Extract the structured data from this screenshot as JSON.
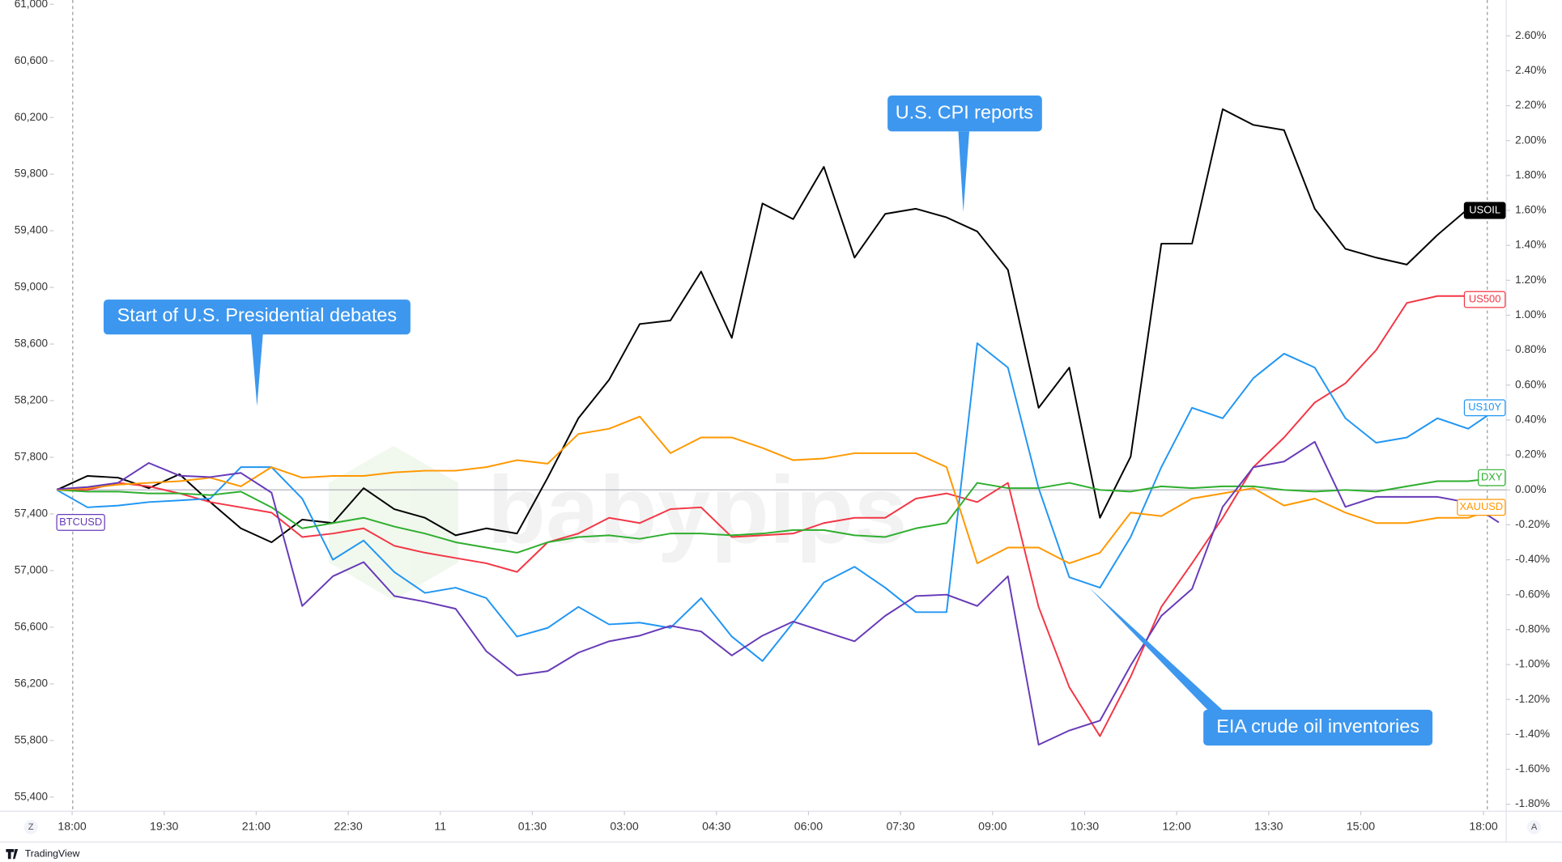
{
  "chart_data": {
    "type": "line",
    "x": [
      0,
      2,
      4,
      6,
      8,
      10,
      12,
      14,
      16,
      18,
      20,
      22,
      24,
      26,
      28,
      30,
      32,
      34,
      36,
      38,
      40,
      42,
      44,
      46,
      48,
      50,
      52,
      54,
      56,
      58,
      60,
      62,
      64,
      66,
      68,
      70,
      72,
      74,
      76,
      78,
      80,
      82,
      84,
      86,
      88,
      90,
      92,
      94
    ],
    "xlim": [
      0,
      94
    ],
    "xticks": [
      {
        "value": 1,
        "label": "18:00"
      },
      {
        "value": 7,
        "label": "19:30"
      },
      {
        "value": 13,
        "label": "21:00"
      },
      {
        "value": 19,
        "label": "22:30"
      },
      {
        "value": 25,
        "label": "11"
      },
      {
        "value": 31,
        "label": "01:30"
      },
      {
        "value": 37,
        "label": "03:00"
      },
      {
        "value": 43,
        "label": "04:30"
      },
      {
        "value": 49,
        "label": "06:00"
      },
      {
        "value": 55,
        "label": "07:30"
      },
      {
        "value": 61,
        "label": "09:00"
      },
      {
        "value": 67,
        "label": "10:30"
      },
      {
        "value": 73,
        "label": "12:00"
      },
      {
        "value": 79,
        "label": "13:30"
      },
      {
        "value": 85,
        "label": "15:00"
      },
      {
        "value": 93,
        "label": "18:00"
      }
    ],
    "ylim": [
      55300,
      61030
    ],
    "yticks": [
      {
        "value": 55400,
        "label": "55,400"
      },
      {
        "value": 55800,
        "label": "55,800"
      },
      {
        "value": 56200,
        "label": "56,200"
      },
      {
        "value": 56600,
        "label": "56,600"
      },
      {
        "value": 57000,
        "label": "57,000"
      },
      {
        "value": 57400,
        "label": "57,400"
      },
      {
        "value": 57800,
        "label": "57,800"
      },
      {
        "value": 58200,
        "label": "58,200"
      },
      {
        "value": 58600,
        "label": "58,600"
      },
      {
        "value": 59000,
        "label": "59,000"
      },
      {
        "value": 59400,
        "label": "59,400"
      },
      {
        "value": 59800,
        "label": "59,800"
      },
      {
        "value": 60200,
        "label": "60,200"
      },
      {
        "value": 60600,
        "label": "60,600"
      },
      {
        "value": 61000,
        "label": "61,000"
      }
    ],
    "y2lim": [
      -1.84,
      2.805
    ],
    "y2ticks": [
      {
        "value": -1.8,
        "label": "-1.80%"
      },
      {
        "value": -1.6,
        "label": "-1.60%"
      },
      {
        "value": -1.4,
        "label": "-1.40%"
      },
      {
        "value": -1.2,
        "label": "-1.20%"
      },
      {
        "value": -1,
        "label": "-1.00%"
      },
      {
        "value": -0.8,
        "label": "-0.80%"
      },
      {
        "value": -0.6,
        "label": "-0.60%"
      },
      {
        "value": -0.4,
        "label": "-0.40%"
      },
      {
        "value": -0.2,
        "label": "-0.20%"
      },
      {
        "value": 0,
        "label": "0.00%"
      },
      {
        "value": 0.2,
        "label": "0.20%"
      },
      {
        "value": 0.4,
        "label": "0.40%"
      },
      {
        "value": 0.6,
        "label": "0.60%"
      },
      {
        "value": 0.8,
        "label": "0.80%"
      },
      {
        "value": 1,
        "label": "1.00%"
      },
      {
        "value": 1.2,
        "label": "1.20%"
      },
      {
        "value": 1.4,
        "label": "1.40%"
      },
      {
        "value": 1.6,
        "label": "1.60%"
      },
      {
        "value": 1.8,
        "label": "1.80%"
      },
      {
        "value": 2,
        "label": "2.00%"
      },
      {
        "value": 2.2,
        "label": "2.20%"
      },
      {
        "value": 2.4,
        "label": "2.40%"
      },
      {
        "value": 2.6,
        "label": "2.60%"
      }
    ],
    "grid": false,
    "series": [
      {
        "name": "USOIL",
        "color": "#000000",
        "axis": "y2",
        "values": [
          0,
          0.08,
          0.07,
          0.01,
          0.09,
          -0.07,
          -0.22,
          -0.3,
          -0.17,
          -0.19,
          0.01,
          -0.11,
          -0.16,
          -0.26,
          -0.22,
          -0.25,
          0.07,
          0.41,
          0.63,
          0.95,
          0.97,
          1.25,
          0.87,
          1.64,
          1.55,
          1.85,
          1.33,
          1.58,
          1.61,
          1.56,
          1.48,
          1.26,
          0.47,
          0.7,
          -0.16,
          0.19,
          1.41,
          1.41,
          2.18,
          2.09,
          2.06,
          1.61,
          1.38,
          1.33,
          1.29,
          1.46,
          1.61,
          1.6
        ]
      },
      {
        "name": "US500",
        "color": "#f23645",
        "axis": "y2",
        "values": [
          0,
          0,
          0.04,
          0.02,
          -0.02,
          -0.07,
          -0.1,
          -0.13,
          -0.27,
          -0.25,
          -0.22,
          -0.32,
          -0.36,
          -0.39,
          -0.42,
          -0.47,
          -0.3,
          -0.25,
          -0.16,
          -0.19,
          -0.11,
          -0.1,
          -0.27,
          -0.26,
          -0.25,
          -0.19,
          -0.16,
          -0.16,
          -0.05,
          -0.02,
          -0.07,
          0.04,
          -0.67,
          -1.13,
          -1.41,
          -1.07,
          -0.67,
          -0.42,
          -0.16,
          0.13,
          0.3,
          0.5,
          0.61,
          0.8,
          1.07,
          1.11,
          1.11,
          1.09
        ]
      },
      {
        "name": "US10Y",
        "color": "#2196f3",
        "axis": "y2",
        "values": [
          0,
          -0.1,
          -0.09,
          -0.07,
          -0.06,
          -0.05,
          0.13,
          0.13,
          -0.05,
          -0.4,
          -0.29,
          -0.47,
          -0.59,
          -0.56,
          -0.62,
          -0.84,
          -0.79,
          -0.67,
          -0.77,
          -0.76,
          -0.79,
          -0.62,
          -0.84,
          -0.98,
          -0.76,
          -0.53,
          -0.44,
          -0.56,
          -0.7,
          -0.7,
          0.84,
          0.7,
          0.01,
          -0.5,
          -0.56,
          -0.27,
          0.13,
          0.47,
          0.41,
          0.64,
          0.78,
          0.7,
          0.41,
          0.27,
          0.3,
          0.41,
          0.35,
          0.47
        ]
      },
      {
        "name": "DXY",
        "color": "#2eae2e",
        "axis": "y2",
        "values": [
          0,
          -0.01,
          -0.01,
          -0.02,
          -0.02,
          -0.03,
          -0.01,
          -0.1,
          -0.22,
          -0.19,
          -0.16,
          -0.21,
          -0.25,
          -0.3,
          -0.33,
          -0.36,
          -0.3,
          -0.27,
          -0.26,
          -0.28,
          -0.25,
          -0.25,
          -0.26,
          -0.25,
          -0.23,
          -0.23,
          -0.26,
          -0.27,
          -0.22,
          -0.19,
          0.04,
          0.01,
          0.01,
          0.04,
          0,
          -0.01,
          0.02,
          0.01,
          0.02,
          0.02,
          0,
          -0.01,
          0,
          -0.01,
          0.02,
          0.05,
          0.05,
          0.07
        ]
      },
      {
        "name": "XAUUSD",
        "color": "#ff9800",
        "axis": "y2",
        "values": [
          0,
          0.01,
          0.03,
          0.04,
          0.05,
          0.07,
          0.02,
          0.13,
          0.07,
          0.08,
          0.08,
          0.1,
          0.11,
          0.11,
          0.13,
          0.17,
          0.15,
          0.32,
          0.35,
          0.42,
          0.21,
          0.3,
          0.3,
          0.24,
          0.17,
          0.18,
          0.21,
          0.21,
          0.21,
          0.13,
          -0.42,
          -0.33,
          -0.33,
          -0.42,
          -0.36,
          -0.13,
          -0.15,
          -0.05,
          -0.02,
          0.01,
          -0.09,
          -0.05,
          -0.13,
          -0.19,
          -0.19,
          -0.16,
          -0.16,
          -0.1
        ]
      },
      {
        "name": "BTCUSD",
        "color": "#673ab7",
        "axis": "y",
        "values": [
          57575,
          57590,
          57620,
          57760,
          57670,
          57660,
          57690,
          57550,
          56750,
          56960,
          57060,
          56820,
          56780,
          56730,
          56430,
          56260,
          56290,
          56420,
          56500,
          56540,
          56610,
          56570,
          56400,
          56540,
          56640,
          56570,
          56500,
          56680,
          56820,
          56830,
          56750,
          56960,
          55770,
          55870,
          55940,
          56330,
          56680,
          56870,
          57450,
          57730,
          57770,
          57910,
          57450,
          57520,
          57520,
          57520,
          57480,
          57340
        ]
      }
    ],
    "annotations": [
      {
        "text": "Start of U.S. Presidential debates"
      },
      {
        "text": "U.S. CPI reports"
      },
      {
        "text": "EIA crude oil inventories"
      }
    ],
    "watermark": "babypips"
  },
  "toolbar": {
    "left_button": "Z",
    "right_button": "A",
    "brand": "TradingView"
  }
}
